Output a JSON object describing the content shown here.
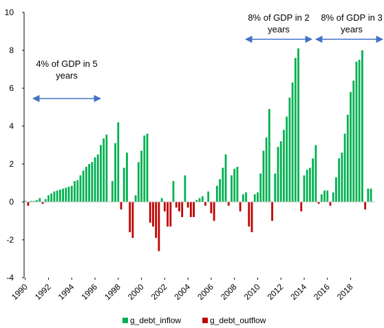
{
  "chart_data": {
    "type": "bar",
    "xlim": [
      1989.9,
      2020.1
    ],
    "xticks": [
      1990,
      1992,
      1994,
      1996,
      1998,
      2000,
      2002,
      2004,
      2006,
      2008,
      2010,
      2012,
      2014,
      2016,
      2018
    ],
    "ylim": [
      -4,
      10
    ],
    "yticks": [
      -4,
      -2,
      0,
      2,
      4,
      6,
      8,
      10
    ],
    "series": [
      {
        "name": "g_debt_inflow",
        "color": "#00b050",
        "x": [
          1990,
          1990.5,
          1990.75,
          1991,
          1991.25,
          1991.75,
          1992,
          1992.25,
          1992.5,
          1992.75,
          1993,
          1993.25,
          1993.5,
          1993.75,
          1994,
          1994.25,
          1994.5,
          1994.75,
          1995,
          1995.25,
          1995.5,
          1995.75,
          1996,
          1996.25,
          1996.5,
          1996.75,
          1997,
          1997.5,
          1997.75,
          1998,
          1998.5,
          1998.75,
          1999.5,
          1999.75,
          2000,
          2000.25,
          2000.5,
          2001.75,
          2002.75,
          2003.75,
          2004.75,
          2005,
          2005.25,
          2005.75,
          2006.5,
          2006.75,
          2007,
          2007.25,
          2007.75,
          2008,
          2008.25,
          2008.75,
          2009,
          2009.75,
          2010,
          2010.25,
          2010.5,
          2010.75,
          2011,
          2011.5,
          2011.75,
          2012,
          2012.25,
          2012.5,
          2012.75,
          2013,
          2013.25,
          2013.5,
          2014,
          2014.25,
          2014.5,
          2014.75,
          2015,
          2015.5,
          2015.75,
          2016,
          2016.5,
          2016.75,
          2017,
          2017.25,
          2017.5,
          2017.75,
          2018,
          2018.25,
          2018.5,
          2018.75,
          2019,
          2019.5,
          2019.75
        ],
        "values": [
          0.05,
          0.05,
          0.05,
          0.1,
          0.2,
          0.15,
          0.35,
          0.45,
          0.55,
          0.6,
          0.65,
          0.7,
          0.75,
          0.8,
          0.85,
          1.1,
          1.15,
          1.4,
          1.65,
          1.85,
          2.0,
          2.1,
          2.35,
          2.5,
          3.0,
          3.35,
          3.55,
          1.1,
          3.1,
          4.2,
          1.8,
          2.6,
          0.35,
          2.1,
          2.7,
          3.5,
          3.6,
          0.2,
          1.1,
          1.4,
          0.1,
          0.2,
          0.3,
          0.55,
          0.85,
          1.2,
          1.8,
          2.5,
          1.4,
          1.75,
          1.85,
          0.4,
          0.5,
          0.4,
          0.5,
          1.5,
          2.7,
          3.4,
          4.9,
          1.5,
          2.9,
          3.2,
          3.8,
          4.5,
          5.5,
          6.3,
          7.6,
          8.1,
          1.4,
          1.7,
          1.8,
          2.3,
          3.0,
          0.4,
          0.6,
          0.6,
          0.5,
          1.3,
          2.3,
          2.6,
          3.6,
          4.6,
          5.8,
          6.4,
          7.4,
          7.5,
          8.0,
          0.7,
          0.7
        ]
      },
      {
        "name": "g_debt_outflow",
        "color": "#c00000",
        "x": [
          1990.25,
          1991.5,
          1998.25,
          1999,
          1999.25,
          2000.75,
          2001,
          2001.25,
          2001.5,
          2002,
          2002.25,
          2002.5,
          2003,
          2003.25,
          2003.5,
          2004,
          2004.25,
          2004.5,
          2005.5,
          2006,
          2006.25,
          2007.5,
          2008.5,
          2009.25,
          2009.5,
          2011.25,
          2013.75,
          2015.25,
          2016.25,
          2019.25
        ],
        "values": [
          -0.2,
          -0.1,
          -0.4,
          -1.6,
          -1.9,
          -1.1,
          -1.3,
          -1.9,
          -2.6,
          -0.5,
          -1.3,
          -1.3,
          -0.3,
          -0.5,
          -0.8,
          -0.3,
          -0.8,
          -0.8,
          -0.2,
          -0.6,
          -1.0,
          -0.2,
          -0.5,
          -1.3,
          -1.6,
          -1.0,
          -0.5,
          -0.1,
          -0.2,
          -0.4
        ]
      }
    ],
    "annotations": [
      {
        "lines": [
          "4% of GDP in 5",
          "years"
        ]
      },
      {
        "lines": [
          "8% of GDP in 2",
          "years"
        ]
      },
      {
        "lines": [
          "8% of GDP in 3",
          "years"
        ]
      }
    ]
  }
}
